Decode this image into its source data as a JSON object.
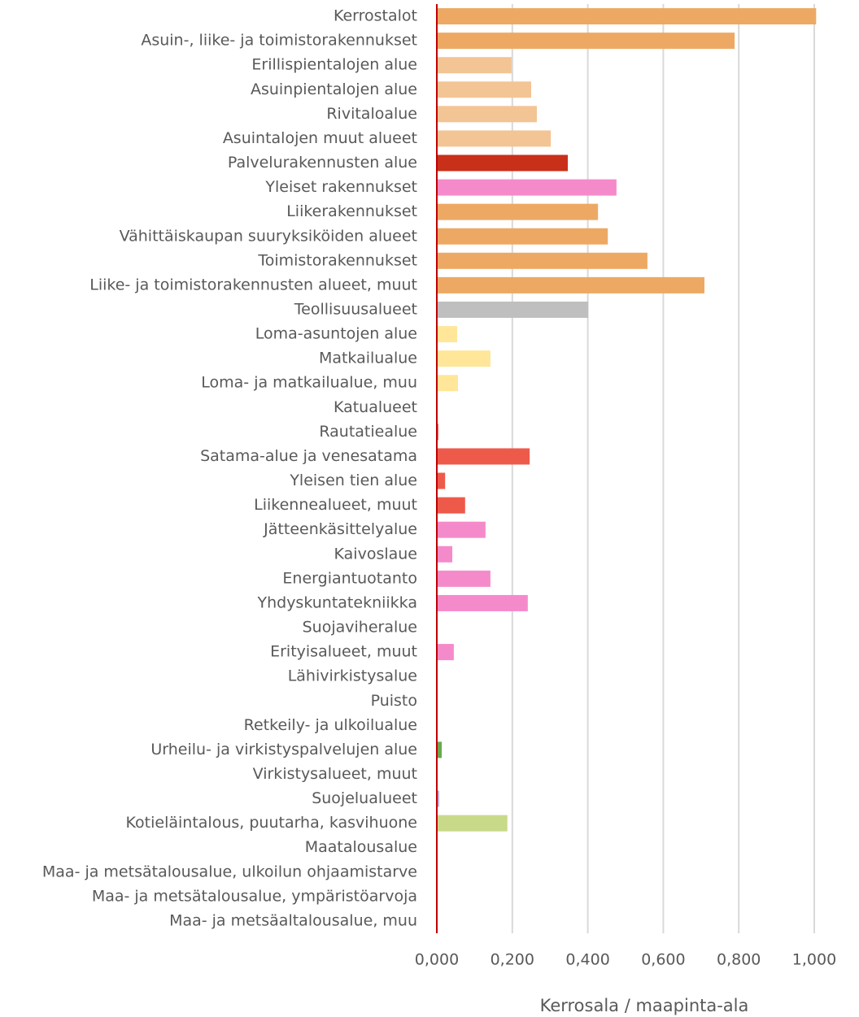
{
  "chart_data": {
    "type": "bar",
    "orientation": "horizontal",
    "x_label": "Kerrosala / maapinta-ala",
    "categories": [
      "Kerrostalot",
      "Asuin-, liike- ja toimistorakennukset",
      "Erillispientalojen alue",
      "Asuinpientalojen alue",
      "Rivitaloalue",
      "Asuintalojen muut alueet",
      "Palvelurakennusten alue",
      "Yleiset rakennukset",
      "Liikerakennukset",
      "Vähittäiskaupan suuryksiköiden alueet",
      "Toimistorakennukset",
      "Liike- ja toimistorakennusten alueet, muut",
      "Teollisuusalueet",
      "Loma-asuntojen alue",
      "Matkailualue",
      "Loma- ja matkailualue, muu",
      "Katualueet",
      "Rautatiealue",
      "Satama-alue ja venesatama",
      "Yleisen tien alue",
      "Liikennealueet, muut",
      "Jätteenkäsittelyalue",
      "Kaivoslaue",
      "Energiantuotanto",
      "Yhdyskuntatekniikka",
      "Suojaviheralue",
      "Erityisalueet, muut",
      "Lähivirkistysalue",
      "Puisto",
      "Retkeily- ja ulkoilualue",
      "Urheilu- ja virkistyspalvelujen alue",
      "Virkistysalueet, muut",
      "Suojelualueet",
      "Kotieläintalous, puutarha, kasvihuone",
      "Maatalousalue",
      "Maa- ja metsätalousalue, ulkoilun ohjaamistarve",
      "Maa- ja metsätalousalue, ympäristöarvoja",
      "Maa- ja metsäaltalousalue, muu"
    ],
    "values": [
      1.005,
      0.789,
      0.198,
      0.25,
      0.265,
      0.302,
      0.347,
      0.476,
      0.427,
      0.453,
      0.558,
      0.709,
      0.401,
      0.054,
      0.142,
      0.056,
      0,
      0.004,
      0.246,
      0.022,
      0.075,
      0.129,
      0.041,
      0.142,
      0.241,
      0,
      0.045,
      0,
      0,
      0,
      0.013,
      0,
      0.006,
      0.187,
      0,
      0,
      0,
      0
    ],
    "colors": [
      "#eda963",
      "#eda963",
      "#f3c494",
      "#f3c494",
      "#f3c494",
      "#f3c494",
      "#c9301a",
      "#f58acb",
      "#eda963",
      "#eda963",
      "#eda963",
      "#eda963",
      "#bfbfbf",
      "#ffe699",
      "#ffe699",
      "#ffe699",
      "#ee5a4a",
      "#ee5a4a",
      "#ee5a4a",
      "#ee5a4a",
      "#ee5a4a",
      "#f58acb",
      "#f58acb",
      "#f58acb",
      "#f58acb",
      "#f58acb",
      "#f58acb",
      "#6aa84f",
      "#6aa84f",
      "#6aa84f",
      "#6aa84f",
      "#6aa84f",
      "#b4a7d6",
      "#c9d98a",
      "#c9d98a",
      "#c9d98a",
      "#c9d98a",
      "#c9d98a"
    ],
    "xlim": [
      0,
      1
    ],
    "xticks": [
      {
        "value": 0,
        "label": "0,000"
      },
      {
        "value": 0.2,
        "label": "0,200"
      },
      {
        "value": 0.4,
        "label": "0,400"
      },
      {
        "value": 0.6,
        "label": "0,600"
      },
      {
        "value": 0.8,
        "label": "0,800"
      },
      {
        "value": 1,
        "label": "1,000"
      }
    ],
    "grid": true
  }
}
